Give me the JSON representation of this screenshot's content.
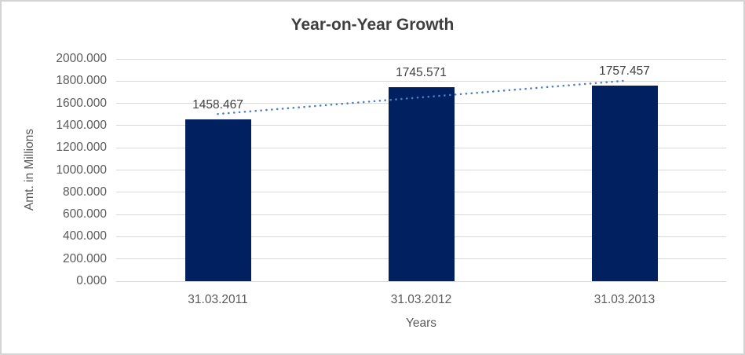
{
  "chart_data": {
    "type": "bar",
    "title": "Year-on-Year Growth",
    "xlabel": "Years",
    "ylabel": "Amt. in Millions",
    "categories": [
      "31.03.2011",
      "31.03.2012",
      "31.03.2013"
    ],
    "values": [
      1458.467,
      1745.571,
      1757.457
    ],
    "data_labels": [
      "1458.467",
      "1745.571",
      "1757.457"
    ],
    "ylim": [
      0,
      2000
    ],
    "ytick_step": 200,
    "ytick_labels": [
      "0.000",
      "200.000",
      "400.000",
      "600.000",
      "800.000",
      "1000.000",
      "1200.000",
      "1400.000",
      "1600.000",
      "1800.000",
      "2000.000"
    ],
    "grid": true,
    "legend": "none",
    "trendline": {
      "type": "linear",
      "style": "dotted"
    },
    "colors": {
      "bar": "#002060",
      "trendline": "#4A80C4",
      "gridline": "#D9D9D9",
      "title": "#3F3F3F",
      "data_label": "#404040",
      "tick_label": "#595959",
      "axis_title": "#595959",
      "border": "#D4D4D4",
      "background": "#FFFFFF"
    }
  }
}
